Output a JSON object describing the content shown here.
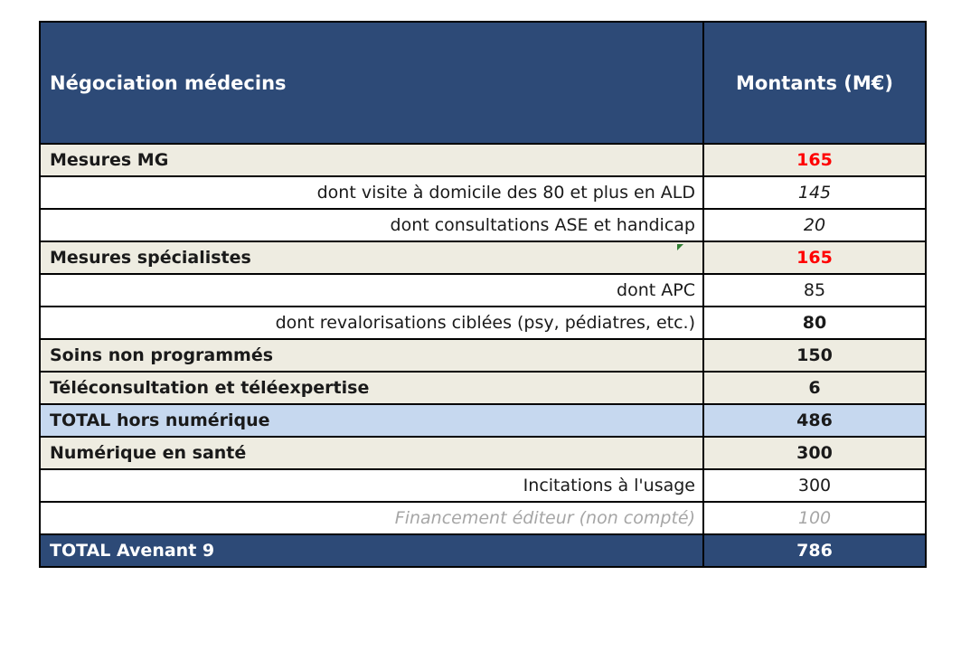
{
  "header": {
    "label": "Négociation médecins",
    "amount": "Montants (M€)"
  },
  "rows": [
    {
      "label": "Mesures MG",
      "amount": "165"
    },
    {
      "label": "dont visite à domicile des 80 et plus en ALD",
      "amount": "145"
    },
    {
      "label": "dont consultations ASE et handicap",
      "amount": "20"
    },
    {
      "label": "Mesures spécialistes",
      "amount": "165"
    },
    {
      "label": "dont APC",
      "amount": "85"
    },
    {
      "label": "dont revalorisations ciblées (psy, pédiatres, etc.)",
      "amount": "80"
    },
    {
      "label": "Soins non programmés",
      "amount": "150"
    },
    {
      "label": "Téléconsultation et téléexpertise",
      "amount": "6"
    },
    {
      "label": "TOTAL hors numérique",
      "amount": "486"
    },
    {
      "label": "Numérique en santé",
      "amount": "300"
    },
    {
      "label": "Incitations à l'usage",
      "amount": "300"
    },
    {
      "label": "Financement éditeur (non compté)",
      "amount": "100"
    },
    {
      "label": "TOTAL Avenant 9",
      "amount": "786"
    }
  ],
  "colors": {
    "header_bg": "#2d4a77",
    "category_bg": "#eeece1",
    "subtotal_bg": "#c6d8ef",
    "highlight_red": "#ff0000",
    "muted_grey": "#a6a6a6"
  }
}
